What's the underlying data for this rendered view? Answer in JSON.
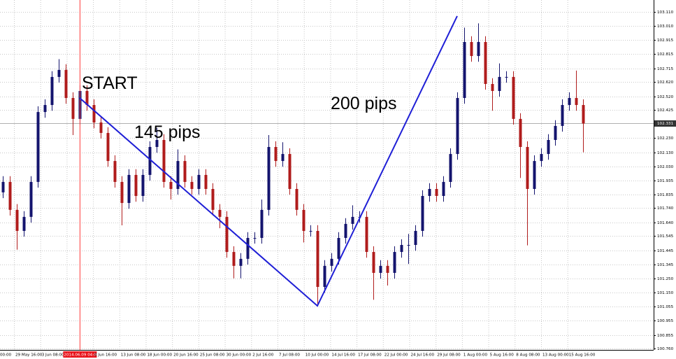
{
  "chart_data": {
    "type": "candlestick",
    "annotations": [
      "START",
      "145 pips",
      "200 pips"
    ],
    "time_labels": [
      "00:00",
      "29 May 16:00",
      "3 Jun 08:00",
      "2014.06.09 04:00",
      "0 Jun 16:00",
      "13 Jun 08:00",
      "18 Jun 00:00",
      "20 Jun 16:00",
      "25 Jun 08:00",
      "30 Jun 00:00",
      "2 Jul 16:00",
      "7 Jul 08:00",
      "10 Jul 00:00",
      "14 Jul 16:00",
      "17 Jul 08:00",
      "22 Jul 00:00",
      "24 Jul 16:00",
      "29 Jul 08:00",
      "1 Aug 00:00",
      "5 Aug 16:00",
      "8 Aug 08:00",
      "13 Aug 00:00",
      "15 Aug 16:00"
    ],
    "highlighted_time_label": 3,
    "ylim": [
      100.76,
      103.11
    ],
    "yticks": [
      {
        "value": 103.11,
        "label": "103.110"
      },
      {
        "value": 103.01,
        "label": "103.010"
      },
      102.915,
      102.815,
      102.715,
      {
        "value": 102.62,
        "label": "102.620"
      },
      {
        "value": 102.52,
        "label": "102.520"
      },
      102.425,
      {
        "value": 102.23,
        "label": "102.230"
      },
      {
        "value": 102.13,
        "label": "102.130"
      },
      {
        "value": 102.03,
        "label": "102.030"
      },
      101.935,
      101.835,
      {
        "value": 101.74,
        "label": "101.740"
      },
      {
        "value": 101.64,
        "label": "101.640"
      },
      101.545,
      101.445,
      101.345,
      {
        "value": 101.25,
        "label": "101.250"
      },
      {
        "value": 101.15,
        "label": "101.150"
      },
      101.055,
      100.955,
      100.855,
      {
        "value": 100.76,
        "label": "100.760"
      }
    ],
    "current_price": 102.331,
    "grid": true,
    "up_color": "#14146e",
    "down_color": "#b01c1c",
    "line_color": "#1f1fd6",
    "marker_color": "#ff3b3b",
    "open": [
      101.85,
      101.923,
      101.728,
      101.581,
      101.679,
      101.923,
      102.411,
      102.46,
      102.656,
      102.705,
      102.509,
      102.363,
      102.558,
      102.46,
      102.338,
      102.265,
      102.069,
      101.923,
      101.776,
      101.972,
      101.825,
      101.972,
      102.167,
      102.216,
      101.923,
      101.874,
      102.069,
      101.923,
      101.874,
      101.972,
      101.874,
      101.728,
      101.679,
      101.434,
      101.337,
      101.386,
      101.532,
      101.532,
      101.728,
      102.167,
      102.069,
      102.118,
      101.874,
      101.728,
      101.581,
      101.581,
      101.19,
      101.337,
      101.386,
      101.532,
      101.63,
      101.679,
      101.679,
      101.434,
      101.288,
      101.337,
      101.288,
      101.434,
      101.483,
      101.483,
      101.581,
      101.825,
      101.874,
      101.825,
      101.923,
      102.118,
      102.509,
      102.9,
      102.802,
      102.9,
      102.607,
      102.558,
      102.656,
      102.656,
      102.363,
      102.167,
      101.874,
      102.069,
      102.118,
      102.216,
      102.314,
      102.46,
      102.509,
      102.46
    ],
    "high": [
      101.963,
      101.963,
      101.768,
      101.719,
      101.963,
      102.451,
      102.5,
      102.696,
      102.78,
      102.745,
      102.549,
      102.598,
      102.598,
      102.5,
      102.378,
      102.305,
      102.109,
      101.963,
      102.012,
      102.012,
      102.012,
      102.207,
      102.3,
      102.256,
      101.963,
      102.15,
      102.109,
      101.963,
      102.012,
      102.012,
      101.914,
      101.768,
      101.719,
      101.474,
      101.426,
      101.572,
      101.572,
      101.8,
      102.25,
      102.207,
      102.2,
      102.158,
      101.914,
      101.768,
      101.621,
      101.621,
      101.377,
      101.426,
      101.572,
      101.67,
      101.76,
      101.719,
      101.719,
      101.474,
      101.377,
      101.377,
      101.474,
      101.523,
      101.56,
      101.621,
      101.865,
      101.914,
      101.914,
      101.963,
      102.158,
      102.549,
      103.0,
      102.94,
      103.03,
      102.94,
      102.647,
      102.75,
      102.696,
      102.696,
      102.403,
      102.207,
      102.109,
      102.158,
      102.256,
      102.354,
      102.5,
      102.549,
      102.7,
      102.5
    ],
    "low": [
      101.81,
      101.688,
      101.45,
      101.541,
      101.639,
      101.883,
      102.371,
      102.42,
      102.616,
      102.469,
      102.25,
      102.323,
      102.42,
      102.298,
      102.225,
      102.029,
      101.883,
      101.62,
      101.736,
      101.785,
      101.785,
      101.932,
      102.127,
      101.883,
      101.8,
      101.834,
      101.883,
      101.834,
      101.834,
      101.834,
      101.688,
      101.6,
      101.394,
      101.25,
      101.25,
      101.346,
      101.492,
      101.492,
      101.688,
      102.029,
      102.029,
      101.834,
      101.688,
      101.5,
      101.541,
      101.07,
      101.15,
      101.297,
      101.346,
      101.492,
      101.59,
      101.639,
      101.394,
      101.1,
      101.248,
      101.2,
      101.248,
      101.394,
      101.35,
      101.443,
      101.541,
      101.785,
      101.785,
      101.785,
      101.883,
      102.078,
      102.469,
      102.762,
      102.762,
      102.567,
      102.42,
      102.518,
      102.616,
      102.323,
      101.95,
      101.48,
      101.834,
      102.029,
      102.078,
      102.176,
      102.274,
      102.42,
      102.42,
      102.13
    ],
    "close": [
      101.923,
      101.728,
      101.581,
      101.679,
      101.923,
      102.411,
      102.46,
      102.656,
      102.705,
      102.509,
      102.363,
      102.558,
      102.46,
      102.338,
      102.265,
      102.069,
      101.923,
      101.776,
      101.972,
      101.825,
      101.972,
      102.167,
      102.216,
      101.923,
      101.874,
      102.069,
      101.923,
      101.874,
      101.972,
      101.874,
      101.728,
      101.679,
      101.434,
      101.337,
      101.386,
      101.532,
      101.532,
      101.728,
      102.167,
      102.069,
      102.118,
      101.874,
      101.728,
      101.581,
      101.581,
      101.19,
      101.337,
      101.386,
      101.532,
      101.63,
      101.679,
      101.679,
      101.434,
      101.288,
      101.337,
      101.288,
      101.434,
      101.483,
      101.483,
      101.581,
      101.825,
      101.874,
      101.825,
      101.923,
      102.118,
      102.509,
      102.9,
      102.802,
      102.9,
      102.607,
      102.558,
      102.656,
      102.656,
      102.363,
      102.167,
      101.874,
      102.069,
      102.118,
      102.216,
      102.314,
      102.46,
      102.509,
      102.46,
      102.331
    ],
    "trend_line": {
      "x": [
        11,
        45,
        65
      ],
      "y": [
        102.509,
        101.058,
        103.081
      ]
    }
  }
}
